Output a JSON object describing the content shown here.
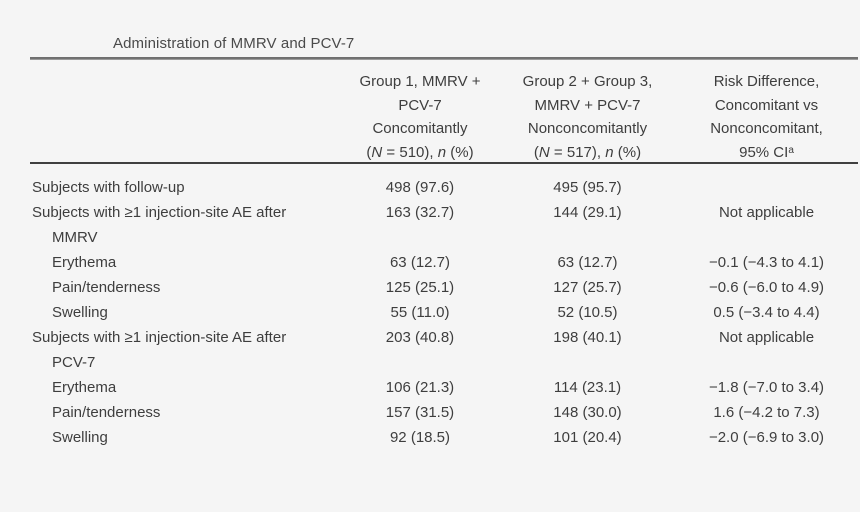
{
  "colors": {
    "background": "#f5f5f5",
    "text": "#3e3e3e",
    "rule_heavy": "#6f6f6f",
    "rule_light": "#3f3f3f"
  },
  "table": {
    "title": "Administration of MMRV and PCV-7",
    "columns": [
      {
        "lines": [
          "Group 1, MMRV +",
          "PCV-7",
          "Concomitantly"
        ],
        "stats_parts": [
          "(",
          "N",
          " = 510), ",
          "n",
          " (%)"
        ]
      },
      {
        "lines": [
          "Group 2 + Group 3,",
          "MMRV + PCV-7",
          "Nonconcomitantly"
        ],
        "stats_parts": [
          "(",
          "N",
          " = 517), ",
          "n",
          " (%)"
        ]
      },
      {
        "lines": [
          "Risk Difference,",
          "Concomitant vs",
          "Nonconcomitant,",
          "95% CI"
        ],
        "footnote": "a"
      }
    ],
    "rows": [
      {
        "label": "Subjects with follow-up",
        "group1": "498 (97.6)",
        "group2": "495 (95.7)",
        "risk": ""
      },
      {
        "label": "Subjects with ≥1 injection-site AE after",
        "group1": "163 (32.7)",
        "group2": "144 (29.1)",
        "risk": "Not applicable"
      },
      {
        "label": "MMRV",
        "group1": "",
        "group2": "",
        "risk": ""
      },
      {
        "label": "Erythema",
        "group1": "63 (12.7)",
        "group2": "63 (12.7)",
        "risk": "−0.1 (−4.3 to 4.1)"
      },
      {
        "label": "Pain/tenderness",
        "group1": "125 (25.1)",
        "group2": "127 (25.7)",
        "risk": "−0.6 (−6.0 to 4.9)"
      },
      {
        "label": "Swelling",
        "group1": "55 (11.0)",
        "group2": "52 (10.5)",
        "risk": "0.5 (−3.4 to 4.4)"
      },
      {
        "label": "Subjects with ≥1 injection-site AE after",
        "group1": "203 (40.8)",
        "group2": "198 (40.1)",
        "risk": "Not applicable"
      },
      {
        "label": "PCV-7",
        "group1": "",
        "group2": "",
        "risk": ""
      },
      {
        "label": "Erythema",
        "group1": "106 (21.3)",
        "group2": "114 (23.1)",
        "risk": "−1.8 (−7.0 to 3.4)"
      },
      {
        "label": "Pain/tenderness",
        "group1": "157 (31.5)",
        "group2": "148 (30.0)",
        "risk": "1.6 (−4.2 to 7.3)"
      },
      {
        "label": "Swelling",
        "group1": "92 (18.5)",
        "group2": "101 (20.4)",
        "risk": "−2.0 (−6.9 to 3.0)"
      }
    ]
  }
}
